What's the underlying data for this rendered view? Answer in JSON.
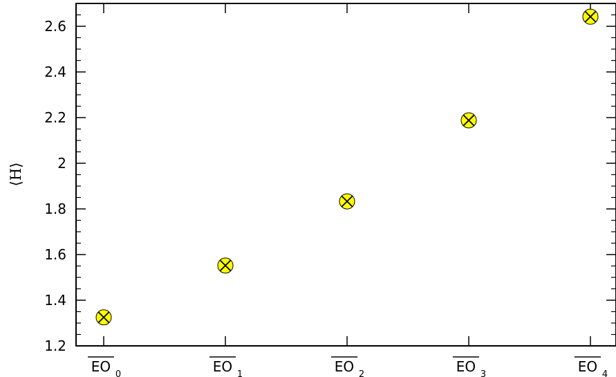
{
  "chart_data": {
    "type": "scatter",
    "categories": [
      {
        "main": "EO",
        "sub": "0"
      },
      {
        "main": "EO",
        "sub": "1"
      },
      {
        "main": "EO",
        "sub": "2"
      },
      {
        "main": "EO",
        "sub": "3"
      },
      {
        "main": "EO",
        "sub": "4"
      }
    ],
    "values": [
      1.325,
      1.552,
      1.833,
      2.188,
      2.642
    ],
    "ylabel": "⟨H⟩",
    "ylim": [
      1.2,
      2.7
    ],
    "yticks": [
      1.2,
      1.4,
      1.6,
      1.8,
      2,
      2.2,
      2.4,
      2.6
    ],
    "ytick_labels": [
      "1.2",
      "1.4",
      "1.6",
      "1.8",
      "2",
      "2.2",
      "2.4",
      "2.6"
    ],
    "marker": {
      "fill": "#ffff00",
      "stroke": "#000000",
      "symbol": "circle-x"
    },
    "grid": false
  }
}
